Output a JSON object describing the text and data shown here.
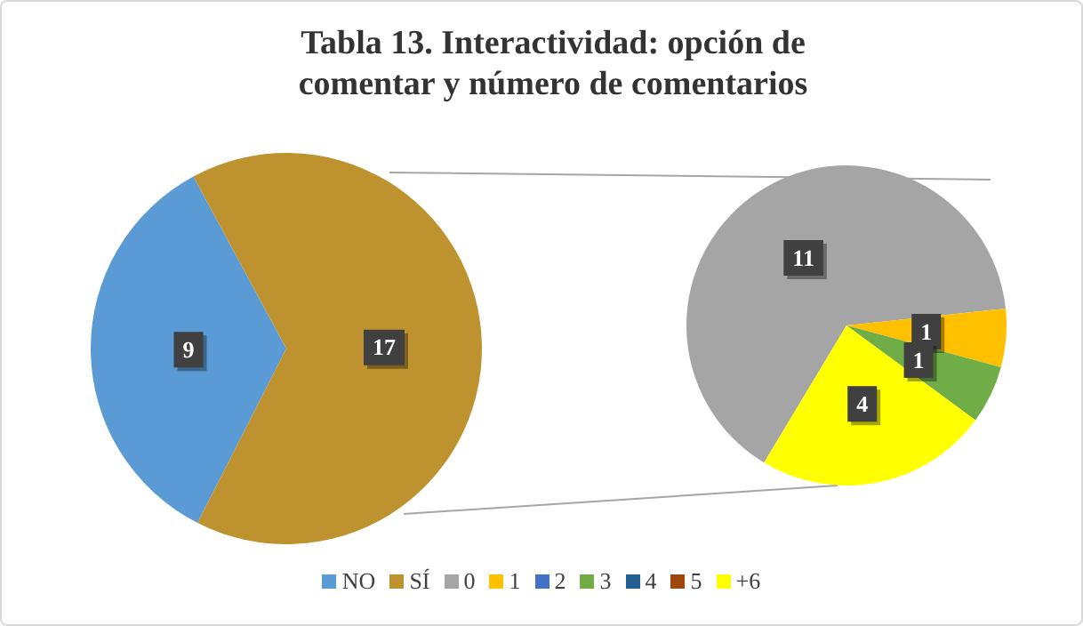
{
  "chart_data": [
    {
      "type": "pie",
      "title": "Tabla 13. Interactividad: opción de comentar y número de comentarios",
      "categories": [
        "NO",
        "SÍ"
      ],
      "values": [
        9,
        17
      ],
      "colors": [
        "#5b9bd5",
        "#bf9230"
      ],
      "value_labels": [
        "9",
        "17"
      ],
      "legend": "bottom"
    },
    {
      "type": "pie",
      "categories": [
        "0",
        "1",
        "2",
        "3",
        "4",
        "5",
        "+6"
      ],
      "values": [
        11,
        1,
        0,
        1,
        0,
        0,
        4
      ],
      "colors": [
        "#a5a5a5",
        "#ffc000",
        "#4472c4",
        "#70ad47",
        "#255e91",
        "#9e480e",
        "#ffff00"
      ],
      "value_labels": [
        "11",
        "1",
        null,
        "1",
        null,
        null,
        "4"
      ],
      "legend": "bottom"
    }
  ]
}
